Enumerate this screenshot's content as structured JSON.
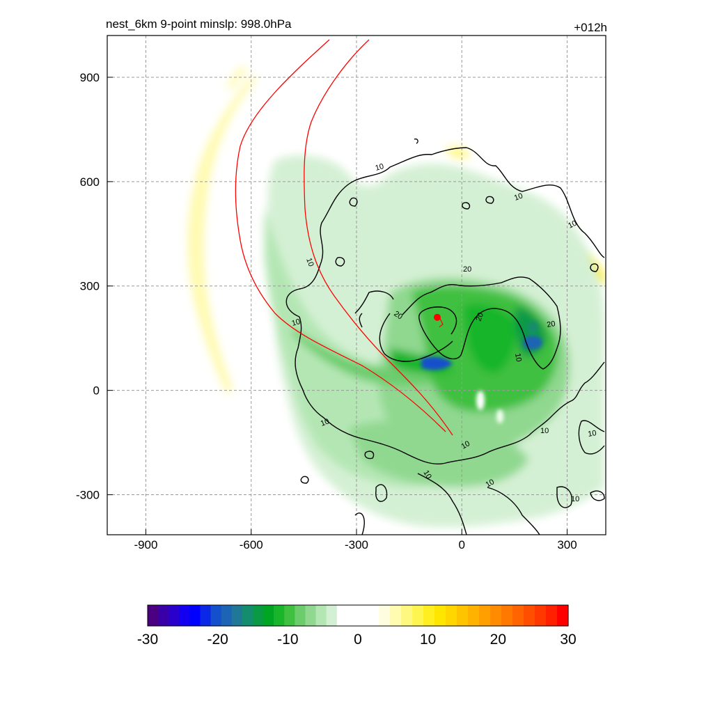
{
  "chart_data": {
    "type": "heatmap",
    "title_left": "nest_6km  9-point minslp: 998.0hPa",
    "title_right": "+012h",
    "xlabel": "",
    "ylabel": "",
    "xlim": [
      -1010,
      410
    ],
    "ylim": [
      -415,
      1020
    ],
    "x_ticks": [
      -900,
      -600,
      -300,
      0,
      300
    ],
    "y_ticks": [
      -300,
      0,
      300,
      600,
      900
    ],
    "grid": true,
    "colorbar": {
      "range": [
        -30,
        30
      ],
      "ticks": [
        -30,
        -20,
        -10,
        0,
        10,
        20,
        30
      ],
      "low_colors": [
        "#4b0082",
        "#3a00a8",
        "#2a00cc",
        "#1400f0",
        "#0000ff",
        "#0a28e6",
        "#1450cc",
        "#1e64b4",
        "#1e7896",
        "#148c6e",
        "#0a9a46",
        "#00a523",
        "#19b52a",
        "#40c040",
        "#6ccc6c",
        "#90d890",
        "#b4e6b4",
        "#d4f0d4"
      ],
      "high_colors": [
        "#fffde0",
        "#fffbb0",
        "#fff880",
        "#fff550",
        "#ffee20",
        "#ffe600",
        "#ffd600",
        "#ffc400",
        "#ffb200",
        "#ffa000",
        "#ff8c00",
        "#ff7800",
        "#ff6400",
        "#ff4e00",
        "#ff3800",
        "#ff2000",
        "#ff0000"
      ]
    },
    "contour_labels": [
      "10",
      "20"
    ],
    "storm_center": {
      "x": -70,
      "y": 210
    },
    "track_end": {
      "x": -25,
      "y": -135
    },
    "track_color": "#ff0000"
  }
}
